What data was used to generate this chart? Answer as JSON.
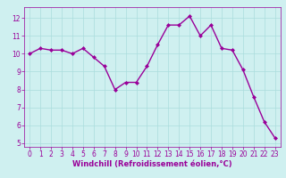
{
  "x": [
    0,
    1,
    2,
    3,
    4,
    5,
    6,
    7,
    8,
    9,
    10,
    11,
    12,
    13,
    14,
    15,
    16,
    17,
    18,
    19,
    20,
    21,
    22,
    23
  ],
  "y": [
    10.0,
    10.3,
    10.2,
    10.2,
    10.0,
    10.3,
    9.8,
    9.3,
    8.0,
    8.4,
    8.4,
    9.3,
    10.5,
    11.6,
    11.6,
    12.1,
    11.0,
    11.6,
    10.3,
    10.2,
    9.1,
    7.6,
    6.2,
    5.3
  ],
  "line_color": "#990099",
  "marker": "D",
  "marker_size": 2,
  "bg_color": "#cff0f0",
  "grid_color": "#aadddd",
  "xlabel": "Windchill (Refroidissement éolien,°C)",
  "xlabel_color": "#990099",
  "tick_color": "#990099",
  "label_color": "#990099",
  "spine_color": "#990099",
  "ylim": [
    4.8,
    12.6
  ],
  "xlim": [
    -0.5,
    23.5
  ],
  "yticks": [
    5,
    6,
    7,
    8,
    9,
    10,
    11,
    12
  ],
  "xticks": [
    0,
    1,
    2,
    3,
    4,
    5,
    6,
    7,
    8,
    9,
    10,
    11,
    12,
    13,
    14,
    15,
    16,
    17,
    18,
    19,
    20,
    21,
    22,
    23
  ],
  "linewidth": 1.0,
  "tick_labelsize": 5.5,
  "xlabel_fontsize": 6.0,
  "xlabel_fontweight": "bold"
}
